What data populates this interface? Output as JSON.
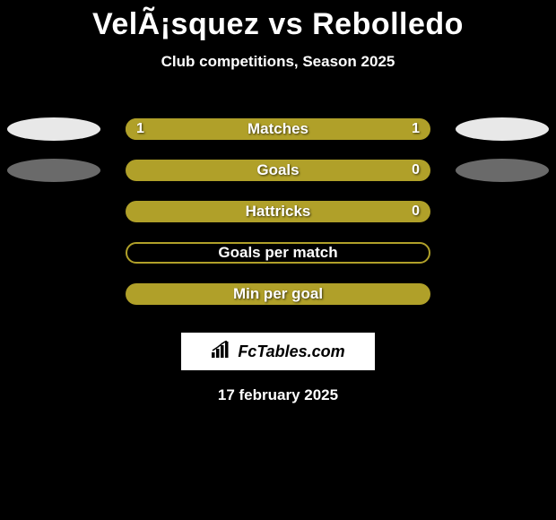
{
  "title": "VelÃ¡squez vs Rebolledo",
  "subtitle": "Club competitions, Season 2025",
  "date": "17 february 2025",
  "logo": {
    "text": "FcTables.com"
  },
  "colors": {
    "background": "#000000",
    "text": "#ffffff",
    "ellipse_white": "#e8e8e8",
    "ellipse_grey": "#6a6a6a",
    "bar_olive": "#b0a029",
    "bar_olive_border": "#c8b830",
    "bar_olive_hollow_border": "#b0a029",
    "logo_box": "#ffffff"
  },
  "rows": [
    {
      "label": "Matches",
      "left_val": "1",
      "right_val": "1",
      "fill_pct": 50,
      "left_ellipse": "#e8e8e8",
      "right_ellipse": "#e8e8e8",
      "track_fill": "#b0a029",
      "inner_fill": "#b0a029",
      "hollow": false
    },
    {
      "label": "Goals",
      "left_val": "",
      "right_val": "0",
      "fill_pct": 100,
      "left_ellipse": "#6a6a6a",
      "right_ellipse": "#6a6a6a",
      "track_fill": "#b0a029",
      "inner_fill": "#b0a029",
      "hollow": false
    },
    {
      "label": "Hattricks",
      "left_val": "",
      "right_val": "0",
      "fill_pct": 100,
      "left_ellipse": "",
      "right_ellipse": "",
      "track_fill": "#b0a029",
      "inner_fill": "#b0a029",
      "hollow": false
    },
    {
      "label": "Goals per match",
      "left_val": "",
      "right_val": "",
      "fill_pct": 0,
      "left_ellipse": "",
      "right_ellipse": "",
      "track_fill": "transparent",
      "inner_fill": "transparent",
      "hollow": true,
      "border_color": "#b0a029"
    },
    {
      "label": "Min per goal",
      "left_val": "",
      "right_val": "",
      "fill_pct": 100,
      "left_ellipse": "",
      "right_ellipse": "",
      "track_fill": "#b0a029",
      "inner_fill": "#b0a029",
      "hollow": false
    }
  ]
}
